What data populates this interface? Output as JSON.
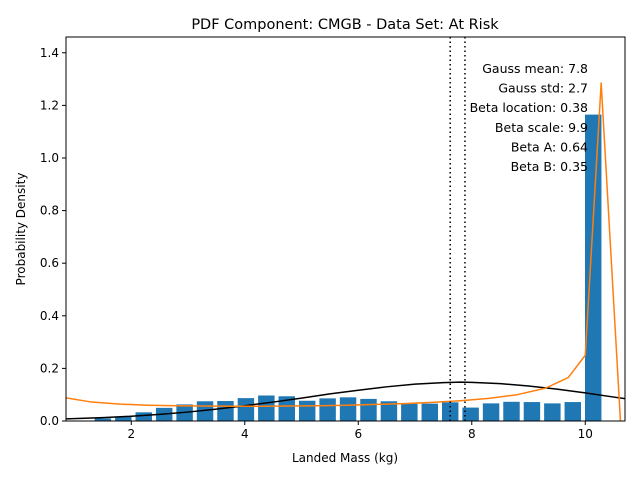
{
  "chart_data": {
    "type": "bar",
    "title": "PDF Component: CMGB - Data Set: At Risk",
    "xlabel": "Landed Mass (kg)",
    "ylabel": "Probability Density",
    "xlim": [
      0.85,
      10.7
    ],
    "ylim": [
      0,
      1.46
    ],
    "xticks": [
      2,
      4,
      6,
      8,
      10
    ],
    "yticks": [
      0.0,
      0.2,
      0.4,
      0.6,
      0.8,
      1.0,
      1.2,
      1.4
    ],
    "xtick_labels": [
      "2",
      "4",
      "6",
      "8",
      "10"
    ],
    "ytick_labels": [
      "0.0",
      "0.2",
      "0.4",
      "0.6",
      "0.8",
      "1.0",
      "1.2",
      "1.4"
    ],
    "grid": false,
    "bar_width": 0.29,
    "bar_color": "#1f77b4",
    "bars": [
      {
        "x": 1.5,
        "y": 0.01
      },
      {
        "x": 1.86,
        "y": 0.015
      },
      {
        "x": 2.22,
        "y": 0.033
      },
      {
        "x": 2.58,
        "y": 0.05
      },
      {
        "x": 2.94,
        "y": 0.063
      },
      {
        "x": 3.3,
        "y": 0.075
      },
      {
        "x": 3.66,
        "y": 0.076
      },
      {
        "x": 4.02,
        "y": 0.087
      },
      {
        "x": 4.38,
        "y": 0.097
      },
      {
        "x": 4.74,
        "y": 0.094
      },
      {
        "x": 5.1,
        "y": 0.077
      },
      {
        "x": 5.46,
        "y": 0.086
      },
      {
        "x": 5.82,
        "y": 0.09
      },
      {
        "x": 6.18,
        "y": 0.084
      },
      {
        "x": 6.54,
        "y": 0.075
      },
      {
        "x": 6.9,
        "y": 0.066
      },
      {
        "x": 7.26,
        "y": 0.066
      },
      {
        "x": 7.62,
        "y": 0.071
      },
      {
        "x": 7.98,
        "y": 0.051
      },
      {
        "x": 8.34,
        "y": 0.067
      },
      {
        "x": 8.7,
        "y": 0.073
      },
      {
        "x": 9.06,
        "y": 0.072
      },
      {
        "x": 9.42,
        "y": 0.067
      },
      {
        "x": 9.78,
        "y": 0.072
      },
      {
        "x": 10.14,
        "y": 1.165
      }
    ],
    "series": [
      {
        "color": "#000000",
        "x": [
          0.85,
          1.5,
          2.0,
          2.5,
          3.0,
          3.5,
          4.0,
          4.5,
          5.0,
          5.5,
          6.0,
          6.5,
          7.0,
          7.5,
          7.8,
          8.0,
          8.5,
          9.0,
          9.5,
          10.0,
          10.5,
          10.7
        ],
        "y": [
          0.008,
          0.013,
          0.018,
          0.025,
          0.034,
          0.045,
          0.058,
          0.072,
          0.087,
          0.103,
          0.117,
          0.13,
          0.14,
          0.146,
          0.148,
          0.147,
          0.142,
          0.133,
          0.121,
          0.107,
          0.091,
          0.085
        ]
      },
      {
        "color": "#ff7f0e",
        "x": [
          0.85,
          1.3,
          1.8,
          2.3,
          2.8,
          3.3,
          3.8,
          4.3,
          4.8,
          5.3,
          5.8,
          6.3,
          6.8,
          7.3,
          7.8,
          8.3,
          8.8,
          9.3,
          9.7,
          10.0,
          10.28,
          10.62
        ],
        "y": [
          0.088,
          0.072,
          0.064,
          0.06,
          0.058,
          0.057,
          0.056,
          0.056,
          0.057,
          0.058,
          0.06,
          0.063,
          0.066,
          0.071,
          0.077,
          0.086,
          0.1,
          0.125,
          0.165,
          0.25,
          1.285,
          0.0
        ]
      }
    ],
    "vlines": [
      {
        "x": 7.62,
        "style": "dotted",
        "color": "#000000"
      },
      {
        "x": 7.88,
        "style": "dotted",
        "color": "#000000"
      }
    ],
    "annotations": [
      "Gauss mean: 7.8",
      "Gauss std: 2.7",
      "Beta location: 0.38",
      "Beta scale: 9.9",
      "Beta A: 0.64",
      "Beta B: 0.35"
    ]
  }
}
